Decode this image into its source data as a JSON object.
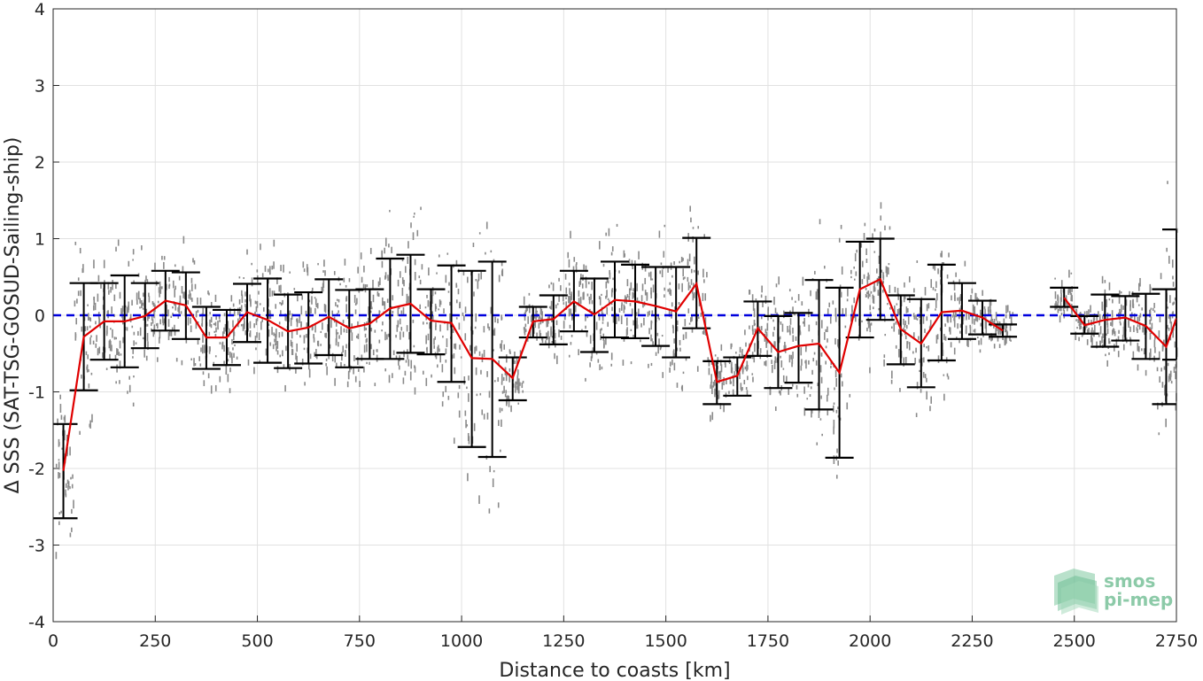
{
  "chart_data": {
    "type": "line",
    "title": "",
    "xlabel": "Distance to coasts [km]",
    "ylabel": "Δ SSS (SAT-TSG-GOSUD-Sailing-ship)",
    "xlim": [
      0,
      2750
    ],
    "ylim": [
      -4,
      4
    ],
    "xticks": [
      0,
      250,
      500,
      750,
      1000,
      1250,
      1500,
      1750,
      2000,
      2250,
      2500,
      2750
    ],
    "yticks": [
      -4,
      -3,
      -2,
      -1,
      0,
      1,
      2,
      3,
      4
    ],
    "grid": true,
    "reference_line": {
      "y": 0,
      "color": "#0000dd",
      "style": "dashed"
    },
    "series": [
      {
        "style": "mean line with standard-deviation error bars",
        "color": "#e00000",
        "x": [
          25,
          75,
          125,
          175,
          225,
          275,
          325,
          375,
          425,
          475,
          525,
          575,
          625,
          675,
          725,
          775,
          825,
          875,
          925,
          975,
          1025,
          1075,
          1125,
          1175,
          1225,
          1275,
          1325,
          1375,
          1425,
          1475,
          1525,
          1575,
          1625,
          1675,
          1725,
          1775,
          1825,
          1875,
          1925,
          1975,
          2025,
          2075,
          2125,
          2175,
          2225,
          2275,
          2325,
          2475,
          2525,
          2575,
          2625,
          2675,
          2725,
          2750
        ],
        "y": [
          -2.03,
          -0.28,
          -0.08,
          -0.08,
          -0.01,
          0.19,
          0.13,
          -0.29,
          -0.29,
          0.04,
          -0.06,
          -0.21,
          -0.16,
          -0.02,
          -0.17,
          -0.11,
          0.09,
          0.15,
          -0.07,
          -0.1,
          -0.56,
          -0.57,
          -0.82,
          -0.08,
          -0.05,
          0.18,
          0.01,
          0.2,
          0.18,
          0.12,
          0.05,
          0.41,
          -0.87,
          -0.79,
          -0.17,
          -0.48,
          -0.4,
          -0.37,
          -0.75,
          0.34,
          0.47,
          -0.18,
          -0.37,
          0.04,
          0.06,
          -0.03,
          -0.2,
          0.23,
          -0.13,
          -0.06,
          -0.03,
          -0.14,
          -0.41,
          -0.04
        ],
        "err_low": [
          -2.65,
          -0.98,
          -0.58,
          -0.68,
          -0.43,
          -0.2,
          -0.31,
          -0.7,
          -0.65,
          -0.35,
          -0.62,
          -0.69,
          -0.63,
          -0.52,
          -0.68,
          -0.57,
          -0.57,
          -0.49,
          -0.51,
          -0.87,
          -1.72,
          -1.85,
          -1.11,
          -0.29,
          -0.38,
          -0.21,
          -0.48,
          -0.29,
          -0.3,
          -0.4,
          -0.55,
          -0.17,
          -1.16,
          -1.05,
          -0.53,
          -0.95,
          -0.88,
          -1.23,
          -1.86,
          -0.29,
          -0.06,
          -0.64,
          -0.94,
          -0.59,
          -0.31,
          -0.25,
          -0.28,
          0.11,
          -0.24,
          -0.41,
          -0.33,
          -0.57,
          -1.16,
          -0.58
        ],
        "err_high": [
          -1.42,
          0.42,
          0.42,
          0.52,
          0.42,
          0.58,
          0.56,
          0.11,
          0.07,
          0.41,
          0.48,
          0.27,
          0.3,
          0.47,
          0.33,
          0.34,
          0.74,
          0.79,
          0.34,
          0.65,
          0.58,
          0.7,
          -0.55,
          0.11,
          0.26,
          0.58,
          0.48,
          0.7,
          0.66,
          0.63,
          0.63,
          1.01,
          -0.6,
          -0.55,
          0.18,
          -0.01,
          0.03,
          0.46,
          0.36,
          0.96,
          1.0,
          0.26,
          0.21,
          0.66,
          0.42,
          0.19,
          -0.12,
          0.36,
          -0.01,
          0.27,
          0.25,
          0.28,
          0.34,
          1.12
        ]
      }
    ],
    "scatter_note": "grey individual match-up points around each bin",
    "logo": {
      "line1": "smos",
      "line2": "pi-mep"
    }
  }
}
